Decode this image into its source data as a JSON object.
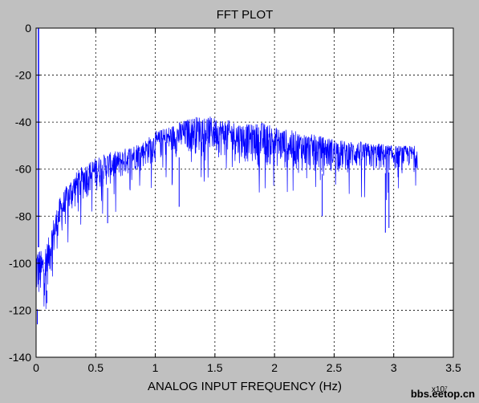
{
  "window": {
    "background": "#c0c0c0"
  },
  "chart_data": {
    "type": "line",
    "title": "FFT PLOT",
    "xlabel": "ANALOG INPUT FREQUENCY (Hz)",
    "ylabel": "",
    "x_multiplier_label": "x10⁷",
    "xlim": [
      0,
      3.5
    ],
    "ylim": [
      -140,
      0
    ],
    "x_ticks": [
      0,
      0.5,
      1,
      1.5,
      2,
      2.5,
      3,
      3.5
    ],
    "x_tick_labels": [
      "0",
      "0.5",
      "1",
      "1.5",
      "2",
      "2.5",
      "3",
      "3.5"
    ],
    "y_ticks": [
      0,
      -20,
      -40,
      -60,
      -80,
      -100,
      -120,
      -140
    ],
    "y_tick_labels": [
      "0",
      "-20",
      "-40",
      "-60",
      "-80",
      "-100",
      "-120",
      "-140"
    ],
    "grid": true,
    "grid_style": "dotted",
    "line_color": "#0000ff",
    "fundamental": {
      "x": 0.02,
      "y": 0
    },
    "series": [
      {
        "x": [
          0,
          0.05,
          0.1,
          0.15,
          0.2,
          0.3,
          0.4,
          0.5,
          0.6,
          0.7,
          0.8,
          0.9,
          1.0,
          1.1,
          1.2,
          1.3,
          1.4,
          1.5,
          1.6,
          1.7,
          1.8,
          1.9,
          2.0,
          2.1,
          2.2,
          2.3,
          2.4,
          2.5,
          2.6,
          2.7,
          2.8,
          2.9,
          3.0,
          3.1,
          3.2
        ],
        "upper": [
          -92,
          -95,
          -90,
          -80,
          -72,
          -63,
          -58,
          -55,
          -53,
          -52,
          -50,
          -48,
          -44,
          -42,
          -40,
          -38,
          -37,
          -38,
          -39,
          -40,
          -41,
          -40,
          -42,
          -43,
          -44,
          -45,
          -46,
          -47,
          -48,
          -48,
          -49,
          -49,
          -50,
          -50,
          -50
        ],
        "lower": [
          -120,
          -118,
          -110,
          -100,
          -90,
          -80,
          -74,
          -70,
          -68,
          -66,
          -62,
          -60,
          -58,
          -56,
          -55,
          -54,
          -54,
          -55,
          -56,
          -58,
          -58,
          -60,
          -60,
          -61,
          -62,
          -62,
          -62,
          -62,
          -62,
          -61,
          -62,
          -62,
          -61,
          -60,
          -60
        ],
        "dips": [
          {
            "x": 0.01,
            "y": -126
          },
          {
            "x": 0.09,
            "y": -117
          },
          {
            "x": 0.6,
            "y": -83
          },
          {
            "x": 1.2,
            "y": -76
          },
          {
            "x": 2.4,
            "y": -80
          },
          {
            "x": 2.93,
            "y": -87
          },
          {
            "x": 2.96,
            "y": -85
          }
        ]
      }
    ]
  },
  "watermark": "bbs.eetop.cn"
}
